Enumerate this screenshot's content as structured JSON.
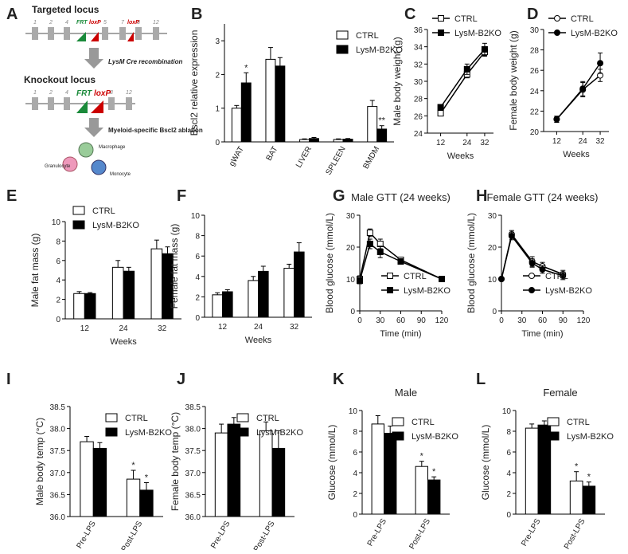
{
  "diagram": {
    "panel": "A",
    "targeted": {
      "title": "Targeted locus",
      "exons": [
        "1",
        "2",
        "4",
        "5",
        "7",
        "8",
        "12"
      ],
      "sites": [
        "FRT",
        "loxP",
        "loxP"
      ]
    },
    "step1": "LysM Cre recombination",
    "knockout": {
      "title": "Knockout locus",
      "exons": [
        "1",
        "2",
        "4",
        "8",
        "12"
      ],
      "sites": [
        "FRT",
        "loxP"
      ]
    },
    "step2": "Myeloid-specific Bscl2 ablation",
    "cells": [
      "Macrophage",
      "Granulocyte",
      "Monocyte"
    ]
  },
  "chart_data": [
    {
      "type": "bar",
      "panel": "B",
      "ylabel": "Bscl2 relative expression",
      "categories": [
        "gWAT",
        "BAT",
        "LIVER",
        "SPLEEN",
        "BMDM"
      ],
      "ylim": [
        0,
        3.5
      ],
      "yticks": [
        0,
        1,
        2,
        3
      ],
      "legend": "upper right",
      "series": [
        {
          "name": "CTRL",
          "color": "#ffffff",
          "values": [
            1.0,
            2.45,
            0.07,
            0.07,
            1.05
          ],
          "errors": [
            0.08,
            0.35,
            0.02,
            0.02,
            0.18
          ],
          "labels": [
            null,
            null,
            null,
            null,
            null
          ]
        },
        {
          "name": "LysM-B2KO",
          "color": "#000000",
          "values": [
            1.75,
            2.25,
            0.1,
            0.08,
            0.38
          ],
          "errors": [
            0.3,
            0.25,
            0.03,
            0.02,
            0.1
          ],
          "labels": [
            "*",
            null,
            null,
            null,
            "**"
          ]
        }
      ]
    },
    {
      "type": "line",
      "panel": "C",
      "xlabel": "Weeks",
      "ylabel": "Male body weight (g)",
      "x": [
        12,
        24,
        32
      ],
      "xlim": [
        6,
        36
      ],
      "xticks": [
        12,
        24,
        32
      ],
      "ylim": [
        24,
        36
      ],
      "yticks": [
        24,
        26,
        28,
        30,
        32,
        34,
        36
      ],
      "legend": "upper left",
      "series": [
        {
          "name": "CTRL",
          "color": "#ffffff",
          "marker": "square",
          "values": [
            26.3,
            30.8,
            33.4
          ],
          "errors": [
            0.3,
            0.4,
            0.5
          ]
        },
        {
          "name": "LysM-B2KO",
          "color": "#000000",
          "marker": "square",
          "values": [
            27.0,
            31.4,
            33.7
          ],
          "errors": [
            0.3,
            0.6,
            0.7
          ]
        }
      ]
    },
    {
      "type": "line",
      "panel": "D",
      "xlabel": "Weeks",
      "ylabel": "Female body weight (g)",
      "x": [
        12,
        24,
        32
      ],
      "xlim": [
        6,
        36
      ],
      "xticks": [
        12,
        24,
        32
      ],
      "ylim": [
        20,
        30
      ],
      "yticks": [
        20,
        22,
        24,
        26,
        28,
        30
      ],
      "legend": "upper left",
      "series": [
        {
          "name": "CTRL",
          "color": "#ffffff",
          "marker": "circle",
          "values": [
            21.2,
            24.1,
            25.5
          ],
          "errors": [
            0.3,
            0.7,
            0.6
          ]
        },
        {
          "name": "LysM-B2KO",
          "color": "#000000",
          "marker": "circle",
          "values": [
            21.2,
            24.2,
            26.7
          ],
          "errors": [
            0.3,
            0.7,
            1.0
          ]
        }
      ]
    },
    {
      "type": "bar",
      "panel": "E",
      "xlabel": "Weeks",
      "ylabel": "Male fat mass (g)",
      "categories": [
        "12",
        "24",
        "32"
      ],
      "ylim": [
        0,
        10
      ],
      "yticks": [
        0,
        2,
        4,
        6,
        8,
        10
      ],
      "legend": "upper left",
      "series": [
        {
          "name": "CTRL",
          "color": "#ffffff",
          "values": [
            2.6,
            5.3,
            7.2
          ],
          "errors": [
            0.2,
            0.7,
            0.9
          ]
        },
        {
          "name": "LysM-B2KO",
          "color": "#000000",
          "values": [
            2.6,
            4.9,
            6.7
          ],
          "errors": [
            0.1,
            0.4,
            0.7
          ]
        }
      ]
    },
    {
      "type": "bar",
      "panel": "F",
      "xlabel": "Weeks",
      "ylabel": "Female fat mass (g)",
      "categories": [
        "12",
        "24",
        "32"
      ],
      "ylim": [
        0,
        10
      ],
      "yticks": [
        0,
        2,
        4,
        6,
        8,
        10
      ],
      "series": [
        {
          "color": "#ffffff",
          "values": [
            2.2,
            3.6,
            4.8
          ],
          "errors": [
            0.2,
            0.4,
            0.4
          ]
        },
        {
          "color": "#000000",
          "values": [
            2.5,
            4.5,
            6.4
          ],
          "errors": [
            0.2,
            0.5,
            0.9
          ]
        }
      ]
    },
    {
      "type": "line",
      "panel": "G",
      "title": "Male GTT (24 weeks)",
      "xlabel": "Time (min)",
      "ylabel": "Blood glucose (mmol/L)",
      "x": [
        0,
        15,
        30,
        60,
        120
      ],
      "xlim": [
        0,
        120
      ],
      "xticks": [
        0,
        30,
        60,
        90,
        120
      ],
      "ylim": [
        0,
        30
      ],
      "yticks": [
        0,
        10,
        20,
        30
      ],
      "legend": "lower right",
      "series": [
        {
          "name": "CTRL",
          "color": "#ffffff",
          "marker": "square",
          "values": [
            10,
            24.5,
            21,
            16,
            10
          ],
          "errors": [
            1,
            1.2,
            1.5,
            0.8,
            0.8
          ]
        },
        {
          "name": "LysM-B2KO",
          "color": "#000000",
          "marker": "square",
          "values": [
            9.5,
            21,
            18.5,
            15.5,
            10
          ],
          "errors": [
            1,
            1.5,
            1.8,
            0.8,
            0.8
          ]
        }
      ]
    },
    {
      "type": "line",
      "panel": "H",
      "title": "Female GTT (24 weeks)",
      "xlabel": "Time (min)",
      "ylabel": "Blood glucose (mmol/L)",
      "x": [
        0,
        15,
        45,
        60,
        90
      ],
      "xlim": [
        0,
        120
      ],
      "xticks": [
        0,
        30,
        60,
        90,
        120
      ],
      "ylim": [
        0,
        30
      ],
      "yticks": [
        0,
        10,
        20,
        30
      ],
      "legend": "lower right",
      "series": [
        {
          "name": "CTRL",
          "color": "#ffffff",
          "marker": "circle",
          "values": [
            10,
            24,
            15.5,
            14,
            11.5
          ],
          "errors": [
            0.5,
            1.2,
            1.5,
            1.2,
            1.2
          ]
        },
        {
          "name": "LysM-B2KO",
          "color": "#000000",
          "marker": "circle",
          "values": [
            10,
            23.5,
            15,
            13,
            11
          ],
          "errors": [
            0.5,
            1.2,
            1.3,
            1.2,
            1.2
          ]
        }
      ]
    },
    {
      "type": "bar",
      "panel": "I",
      "ylabel": "Male body temp (°C)",
      "categories": [
        "Pre-LPS",
        "Post-LPS"
      ],
      "ylim": [
        36.0,
        38.5
      ],
      "yticks": [
        {
          "value": 36.0,
          "label": "36.0"
        },
        {
          "value": 36.5,
          "label": "36.5"
        },
        {
          "value": 37.0,
          "label": "37.0"
        },
        {
          "value": 37.5,
          "label": "37.5"
        },
        {
          "value": 38.0,
          "label": "38.0"
        },
        {
          "value": 38.5,
          "label": "38.5"
        }
      ],
      "legend": "upper right",
      "series": [
        {
          "name": "CTRL",
          "color": "#ffffff",
          "values": [
            37.7,
            36.85
          ],
          "errors": [
            0.12,
            0.2
          ],
          "labels": [
            null,
            "*"
          ]
        },
        {
          "name": "LysM-B2KO",
          "color": "#000000",
          "values": [
            37.55,
            36.6
          ],
          "errors": [
            0.13,
            0.17
          ],
          "labels": [
            null,
            "*"
          ]
        }
      ]
    },
    {
      "type": "bar",
      "panel": "J",
      "ylabel": "Female body temp (°C)",
      "categories": [
        "Pre-LPS",
        "Post-LPS"
      ],
      "ylim": [
        36.0,
        38.5
      ],
      "yticks": [
        {
          "value": 36.0,
          "label": "36.0"
        },
        {
          "value": 36.5,
          "label": "36.5"
        },
        {
          "value": 37.0,
          "label": "37.0"
        },
        {
          "value": 37.5,
          "label": "37.5"
        },
        {
          "value": 38.0,
          "label": "38.0"
        },
        {
          "value": 38.5,
          "label": "38.5"
        }
      ],
      "legend": "upper right",
      "series": [
        {
          "name": "CTRL",
          "color": "#ffffff",
          "values": [
            37.9,
            37.95
          ],
          "errors": [
            0.2,
            0.2
          ]
        },
        {
          "name": "LysM-B2KO",
          "color": "#000000",
          "values": [
            38.1,
            37.55
          ],
          "errors": [
            0.15,
            0.4
          ]
        }
      ]
    },
    {
      "type": "bar",
      "panel": "K",
      "title": "Male",
      "ylabel": "Glucose (mmol/L)",
      "categories": [
        "Pre-LPS",
        "Post-LPS"
      ],
      "ylim": [
        0,
        10
      ],
      "yticks": [
        0,
        2,
        4,
        6,
        8,
        10
      ],
      "legend": "upper right",
      "series": [
        {
          "name": "CTRL",
          "color": "#ffffff",
          "values": [
            8.7,
            4.6
          ],
          "errors": [
            0.8,
            0.5
          ],
          "labels": [
            null,
            "*"
          ]
        },
        {
          "name": "LysM-B2KO",
          "color": "#000000",
          "values": [
            7.8,
            3.3
          ],
          "errors": [
            0.7,
            0.3
          ],
          "labels": [
            null,
            "*"
          ]
        }
      ]
    },
    {
      "type": "bar",
      "panel": "L",
      "title": "Female",
      "ylabel": "Glucose (mmol/L)",
      "categories": [
        "Pre-LPS",
        "Post-LPS"
      ],
      "ylim": [
        0,
        10
      ],
      "yticks": [
        0,
        2,
        4,
        6,
        8,
        10
      ],
      "legend": "upper right",
      "series": [
        {
          "name": "CTRL",
          "color": "#ffffff",
          "values": [
            8.3,
            3.2
          ],
          "errors": [
            0.4,
            0.9
          ],
          "labels": [
            null,
            "*"
          ]
        },
        {
          "name": "LysM-B2KO",
          "color": "#000000",
          "values": [
            8.6,
            2.7
          ],
          "errors": [
            0.4,
            0.4
          ],
          "labels": [
            null,
            "*"
          ]
        }
      ]
    }
  ]
}
